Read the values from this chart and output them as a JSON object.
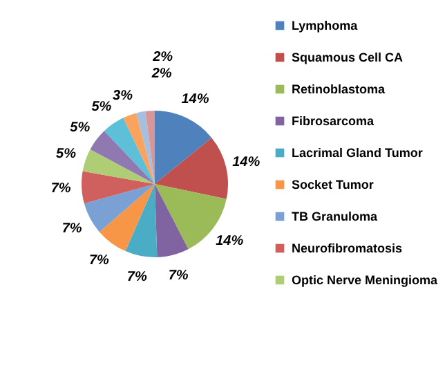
{
  "chart_data": {
    "type": "pie",
    "categories": [
      "Lymphoma",
      "Squamous Cell CA",
      "Retinoblastoma",
      "Fibrosarcoma",
      "Lacrimal Gland Tumor",
      "Socket Tumor",
      "TB Granuloma",
      "Neurofibromatosis",
      "Optic Nerve Meningioma",
      null,
      null,
      null,
      null,
      null
    ],
    "values": [
      14,
      14,
      14,
      7,
      7,
      7,
      7,
      7,
      5,
      5,
      5,
      3,
      2,
      2
    ],
    "value_labels": [
      "14%",
      "14%",
      "14%",
      "7%",
      "7%",
      "7%",
      "7%",
      "7%",
      "5%",
      "5%",
      "5%",
      "3%",
      "2%",
      "2%"
    ],
    "colors": [
      "#4f81bd",
      "#c0504d",
      "#9bbb59",
      "#8064a2",
      "#4bacc6",
      "#f79646",
      "#7ba0d4",
      "#d0605d",
      "#afcd74",
      "#9079b0",
      "#5ebfd8",
      "#f9a35e",
      "#a7bfde",
      "#d99694"
    ],
    "legend": "right"
  }
}
